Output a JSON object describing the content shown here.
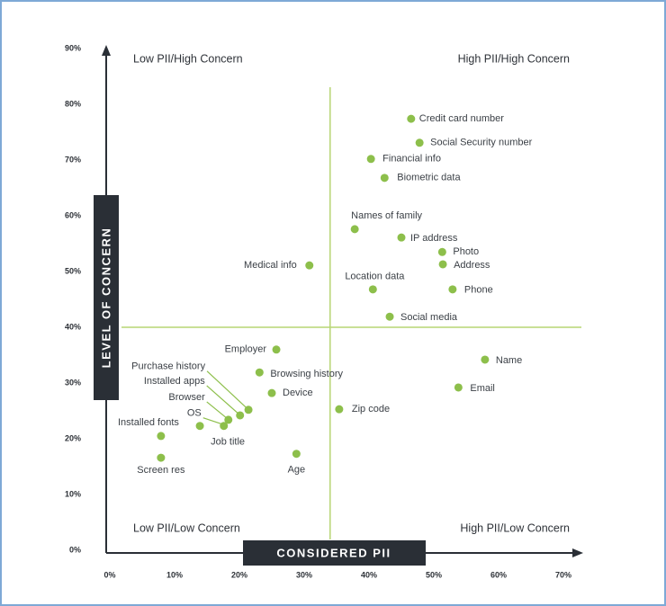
{
  "chart_data": {
    "type": "scatter",
    "x_label": "CONSIDERED PII",
    "y_label": "LEVEL OF CONCERN",
    "annotations": [
      "Low PII/High Concern",
      "High PII/High Concern",
      "Low PII/Low Concern",
      "High PII/Low Concern"
    ],
    "xlim": [
      0,
      70
    ],
    "ylim": [
      0,
      90
    ],
    "xticks": [
      {
        "value": 0,
        "label": "0%"
      },
      {
        "value": 10,
        "label": "10%"
      },
      {
        "value": 20,
        "label": "20%"
      },
      {
        "value": 30,
        "label": "30%"
      },
      {
        "value": 40,
        "label": "40%"
      },
      {
        "value": 50,
        "label": "50%"
      },
      {
        "value": 60,
        "label": "60%"
      },
      {
        "value": 70,
        "label": "70%"
      }
    ],
    "yticks": [
      {
        "value": 0,
        "label": "0%"
      },
      {
        "value": 10,
        "label": "10%"
      },
      {
        "value": 20,
        "label": "20%"
      },
      {
        "value": 30,
        "label": "30%"
      },
      {
        "value": 40,
        "label": "40%"
      },
      {
        "value": 50,
        "label": "50%"
      },
      {
        "value": 60,
        "label": "60%"
      },
      {
        "value": 70,
        "label": "70%"
      },
      {
        "value": 80,
        "label": "80%"
      },
      {
        "value": 90,
        "label": "90%"
      }
    ],
    "divider_x": 34,
    "divider_y": 40,
    "color": "#8dbf4b",
    "divider_color": "#b7d574",
    "labels": [
      "Credit card number",
      "Social Security number",
      "Financial info",
      "Biometric data",
      "Names of family",
      "IP address",
      "Photo",
      "Address",
      "Medical info",
      "Location data",
      "Phone",
      "Social media",
      "Employer",
      "Name",
      "Purchase history",
      "Browsing history",
      "Installed apps",
      "Device",
      "Email",
      "Browser",
      "OS",
      "Zip code",
      "Job title",
      "Installed fonts",
      "Age",
      "Screen res"
    ],
    "x": [
      46.5,
      47.8,
      40.3,
      42.4,
      37.8,
      45.0,
      51.3,
      51.4,
      30.8,
      40.6,
      52.9,
      43.2,
      25.7,
      57.9,
      21.4,
      23.1,
      20.1,
      25.0,
      53.8,
      18.3,
      17.6,
      35.4,
      13.9,
      7.9,
      28.8,
      7.9
    ],
    "values": [
      77.4,
      73.1,
      70.2,
      66.8,
      57.6,
      56.1,
      53.5,
      51.3,
      51.1,
      46.8,
      46.8,
      41.9,
      36.0,
      34.2,
      25.2,
      31.9,
      24.2,
      28.2,
      29.2,
      23.4,
      22.3,
      25.3,
      22.3,
      20.5,
      17.3,
      16.6
    ]
  }
}
